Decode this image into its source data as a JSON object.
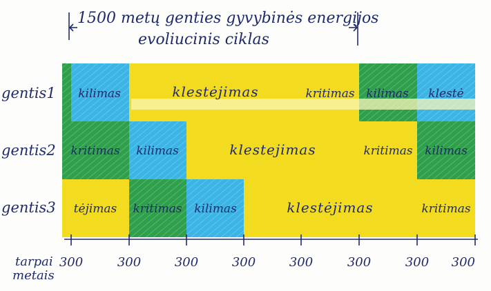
{
  "title_line1": "1500 metų genties gyvybinės energijos",
  "title_line2": "evoliucinis ciklas",
  "rows": [
    {
      "label": "gentis1",
      "cells": [
        {
          "phase": "kritimas",
          "text": ""
        },
        {
          "phase": "kilimas",
          "text": "kilimas"
        },
        {
          "phase": "klestejimas",
          "text": "klestėjimas"
        },
        {
          "phase": "klestejimas",
          "text": ""
        },
        {
          "phase": "kritimas",
          "text": "kritimas"
        },
        {
          "phase": "kilimas",
          "text": "kilimas"
        },
        {
          "phase": "klestejimas",
          "text": "klestė"
        }
      ]
    },
    {
      "label": "gentis2",
      "cells": [
        {
          "phase": "kritimas",
          "text": "kritimas"
        },
        {
          "phase": "kilimas",
          "text": "kilimas"
        },
        {
          "phase": "klestejimas",
          "text": "klestejimas"
        },
        {
          "phase": "klestejimas",
          "text": ""
        },
        {
          "phase": "kritimas",
          "text": "kritimas"
        },
        {
          "phase": "kilimas",
          "text": "kilimas"
        }
      ]
    },
    {
      "label": "gentis3",
      "cells": [
        {
          "phase": "klestejimas",
          "text": "tėjimas"
        },
        {
          "phase": "kritimas",
          "text": "kritimas"
        },
        {
          "phase": "kilimas",
          "text": "kilimas"
        },
        {
          "phase": "klestejimas",
          "text": "klestėjimas"
        },
        {
          "phase": "klestejimas",
          "text": ""
        },
        {
          "phase": "kritimas",
          "text": "kritimas"
        }
      ]
    }
  ],
  "axis": {
    "label_line1": "tarpai",
    "label_line2": "metais",
    "ticks": [
      "300",
      "300",
      "300",
      "300",
      "300",
      "300",
      "300",
      "300"
    ]
  },
  "colors": {
    "kritimas": "#2ea04b",
    "kilimas": "#3bb4e6",
    "klestejimas": "#f3dc1f",
    "ink": "#1f2a6b"
  }
}
